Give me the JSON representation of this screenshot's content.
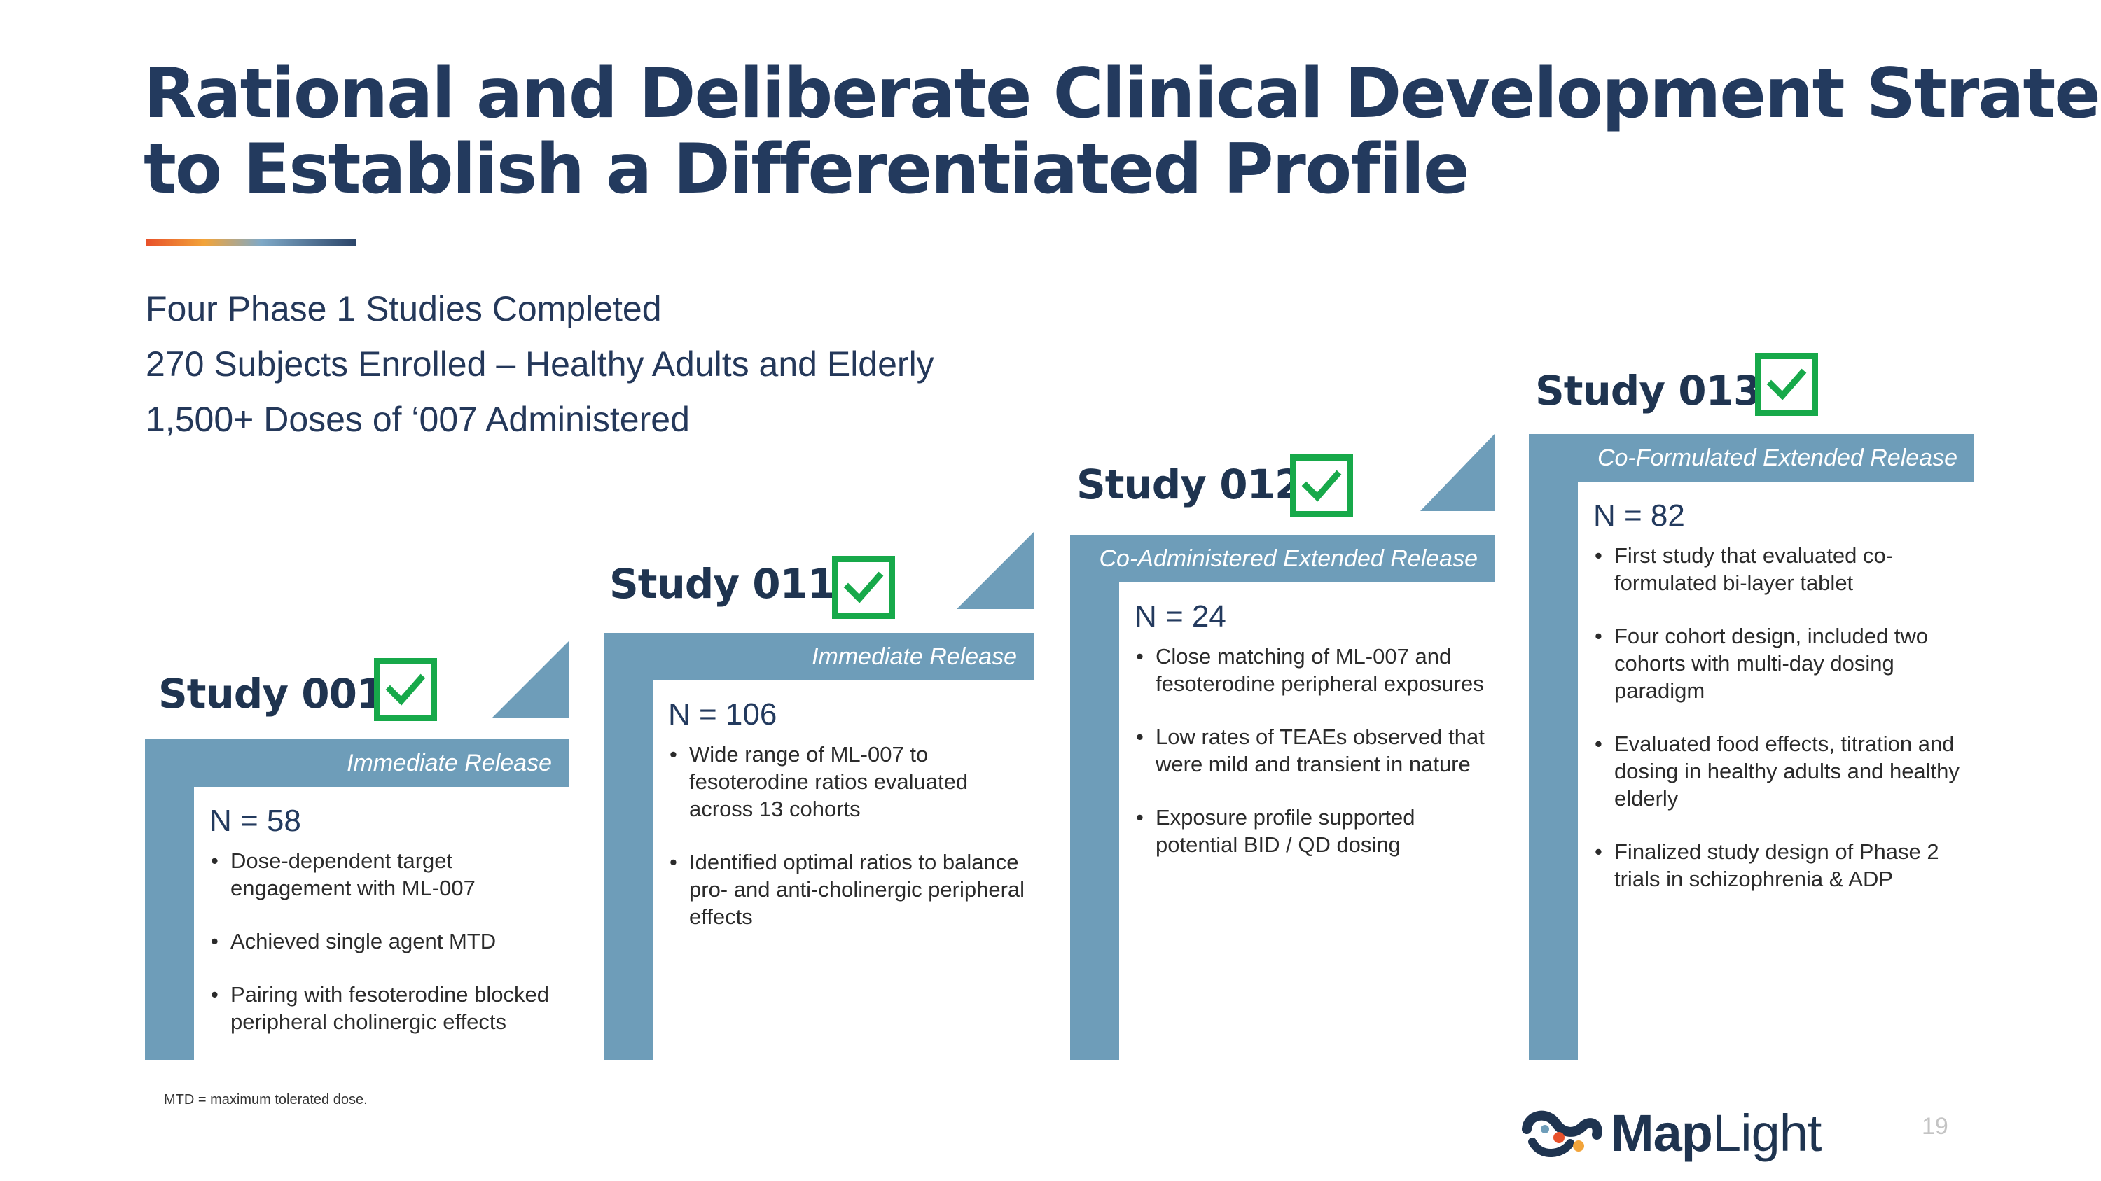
{
  "title": {
    "line1": "Rational and Deliberate Clinical Development Strategy",
    "line2": "to Establish a Differentiated Profile"
  },
  "stats": [
    "Four Phase 1 Studies Completed",
    "270 Subjects Enrolled – Healthy Adults and Elderly",
    "1,500+ Doses of ‘007 Administered"
  ],
  "studies": [
    {
      "title": "Study 001",
      "completed": true,
      "release": "Immediate Release",
      "n": "N = 58",
      "bullets": [
        "Dose-dependent target engagement with ML-007",
        "Achieved single agent MTD",
        "Pairing with fesoterodine blocked peripheral cholinergic effects"
      ]
    },
    {
      "title": "Study 011",
      "completed": true,
      "release": "Immediate Release",
      "n": "N = 106",
      "bullets": [
        "Wide range of ML-007 to fesoterodine ratios evaluated across 13 cohorts",
        "Identified optimal ratios to balance pro- and anti-cholinergic peripheral effects"
      ]
    },
    {
      "title": "Study 012",
      "completed": true,
      "release": "Co-Administered Extended Release",
      "n": "N = 24",
      "bullets": [
        "Close matching of ML-007 and fesoterodine peripheral exposures",
        "Low rates of TEAEs observed that were mild and transient in nature",
        "Exposure profile supported potential BID / QD dosing"
      ]
    },
    {
      "title": "Study 013",
      "completed": true,
      "release": "Co-Formulated Extended Release",
      "n": "N = 82",
      "bullets": [
        "First study that evaluated co-formulated bi-layer tablet",
        "Four cohort design, included two cohorts with multi-day dosing paradigm",
        "Evaluated food effects, titration and dosing in healthy adults and healthy elderly",
        "Finalized study design of Phase 2 trials in schizophrenia & ADP"
      ]
    }
  ],
  "footnote": "MTD = maximum tolerated dose.",
  "logo": {
    "part1": "Map",
    "part2": "Light"
  },
  "page_number": "19",
  "colors": {
    "navy": "#233a5e",
    "steel_blue": "#6e9db9",
    "check_green": "#17a94a",
    "accent_orange": "#e8502a"
  }
}
